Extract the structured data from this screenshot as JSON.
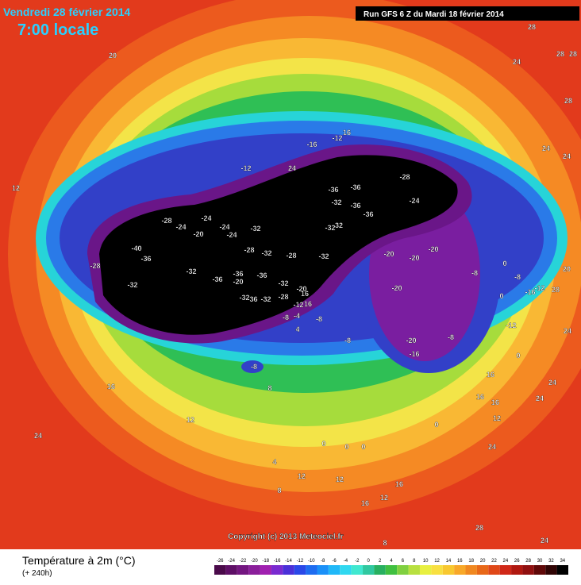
{
  "header": {
    "title": "Vendredi 28 février 2014",
    "subtitle": "7:00 locale",
    "run": "Run GFS 6 Z du Mardi 18 février 2014"
  },
  "map": {
    "copyright": "Copyright (c) 2013 Meteociel.fr",
    "contour_labels": [
      20,
      28,
      24,
      28,
      28,
      28,
      24,
      24,
      12,
      16,
      -12,
      -16,
      -12,
      24,
      -28,
      -36,
      -36,
      -32,
      -36,
      -36,
      -24,
      -28,
      -24,
      -24,
      -20,
      -24,
      -24,
      -32,
      -32,
      32,
      -40,
      -36,
      -28,
      -28,
      -32,
      -28,
      -32,
      -20,
      -20,
      -20,
      0,
      -8,
      -8,
      20,
      -32,
      -36,
      -36,
      -20,
      -36,
      -32,
      -32,
      -20,
      -16,
      -12,
      28,
      0,
      -20,
      16,
      -28,
      -32,
      -36,
      -32,
      -12,
      16,
      -8,
      -4,
      -8,
      4,
      -12,
      24,
      -8,
      -20,
      -8,
      -16,
      -8,
      16,
      0,
      24,
      16,
      16,
      12,
      24,
      8,
      16,
      0,
      12,
      24,
      0,
      0,
      0,
      24,
      4,
      12,
      12,
      16,
      8,
      12,
      16,
      28,
      24,
      8
    ]
  },
  "legend": {
    "title": "Température à 2m (°C)",
    "lead": "(+ 240h)",
    "ticks": [
      -26,
      -24,
      -22,
      -20,
      -18,
      -16,
      -14,
      -12,
      -10,
      -8,
      -6,
      -4,
      -2,
      0,
      2,
      4,
      6,
      8,
      10,
      12,
      14,
      16,
      18,
      20,
      22,
      24,
      26,
      28,
      30,
      32,
      34
    ],
    "colors": [
      "#4a0a4a",
      "#5e0f66",
      "#731680",
      "#8a1e9a",
      "#a020b0",
      "#7a2ad0",
      "#4a30d8",
      "#2a48e8",
      "#1e6cf0",
      "#1a90f8",
      "#20b8f8",
      "#30d8f0",
      "#40e8d0",
      "#30c8a0",
      "#28b060",
      "#40c040",
      "#80d040",
      "#b8e040",
      "#e8f040",
      "#f8e040",
      "#f8c830",
      "#f8a828",
      "#f08820",
      "#e86818",
      "#e04818",
      "#d02818",
      "#b01810",
      "#901010",
      "#600808",
      "#300404",
      "#000000"
    ]
  }
}
